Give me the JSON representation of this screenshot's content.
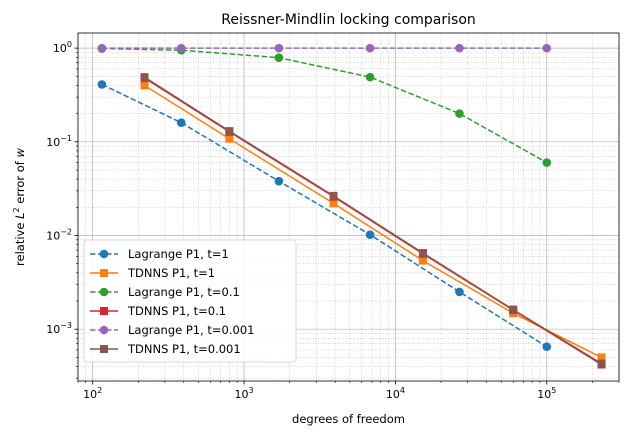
{
  "chart_data": {
    "type": "line",
    "title": "Reissner-Mindlin locking comparison",
    "xlabel": "degrees of freedom",
    "ylabel_prefix": "relative ",
    "ylabel_var": "L",
    "ylabel_sup": "2",
    "ylabel_suffix": " error of ",
    "ylabel_italic": "w",
    "xscale": "log",
    "yscale": "log",
    "xlim": [
      80,
      300000
    ],
    "ylim": [
      0.00028,
      1.45
    ],
    "grid": true,
    "legend_position": "lower-left",
    "xticks": [
      {
        "value": 100,
        "base": "10",
        "exp": "2"
      },
      {
        "value": 1000,
        "base": "10",
        "exp": "3"
      },
      {
        "value": 10000,
        "base": "10",
        "exp": "4"
      },
      {
        "value": 100000,
        "base": "10",
        "exp": "5"
      }
    ],
    "yticks": [
      {
        "value": 0.001,
        "base": "10",
        "exp": "−3"
      },
      {
        "value": 0.01,
        "base": "10",
        "exp": "−2"
      },
      {
        "value": 0.1,
        "base": "10",
        "exp": "−1"
      },
      {
        "value": 1,
        "base": "10",
        "exp": "0"
      }
    ],
    "series": [
      {
        "name": "Lagrange P1, t=1",
        "color": "#1f77b4",
        "dash": true,
        "marker": "circle",
        "x": [
          115,
          385,
          1700,
          6800,
          26500,
          100000
        ],
        "y": [
          0.41,
          0.16,
          0.038,
          0.0102,
          0.0025,
          0.00065
        ]
      },
      {
        "name": "TDNNS P1, t=1",
        "color": "#ff7f0e",
        "dash": false,
        "marker": "square",
        "x": [
          220,
          800,
          3900,
          15200,
          60000,
          230000
        ],
        "y": [
          0.4,
          0.108,
          0.022,
          0.0054,
          0.00148,
          0.0005
        ]
      },
      {
        "name": "Lagrange P1, t=0.1",
        "color": "#2ca02c",
        "dash": true,
        "marker": "circle",
        "x": [
          115,
          385,
          1700,
          6800,
          26500,
          100000
        ],
        "y": [
          0.99,
          0.95,
          0.79,
          0.49,
          0.2,
          0.06
        ]
      },
      {
        "name": "TDNNS P1, t=0.1",
        "color": "#d62728",
        "dash": false,
        "marker": "square",
        "x": [
          220,
          800,
          3900,
          15200,
          60000,
          230000
        ],
        "y": [
          0.48,
          0.128,
          0.026,
          0.0064,
          0.0016,
          0.00042
        ]
      },
      {
        "name": "Lagrange P1, t=0.001",
        "color": "#9467bd",
        "dash": true,
        "marker": "circle",
        "x": [
          115,
          385,
          1700,
          6800,
          26500,
          100000
        ],
        "y": [
          1.0,
          1.0,
          1.0,
          1.0,
          1.0,
          1.0
        ]
      },
      {
        "name": "TDNNS P1, t=0.001",
        "color": "#8c564b",
        "dash": false,
        "marker": "square",
        "x": [
          220,
          800,
          3900,
          15200,
          60000,
          230000
        ],
        "y": [
          0.49,
          0.13,
          0.0265,
          0.0065,
          0.00162,
          0.00043
        ]
      }
    ]
  }
}
